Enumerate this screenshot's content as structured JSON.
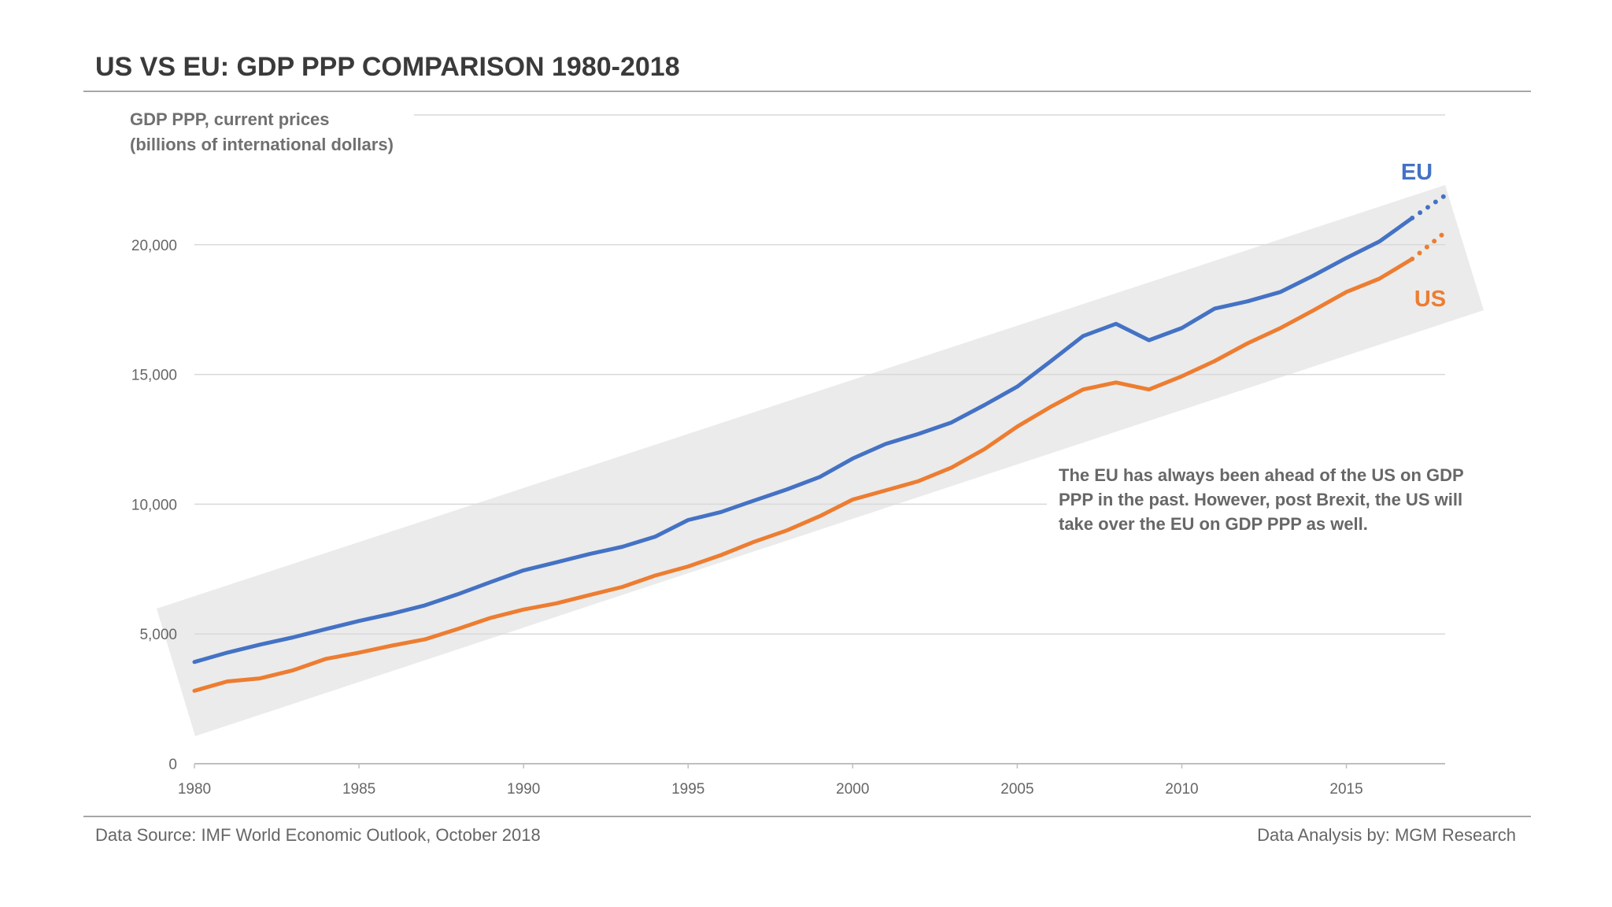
{
  "title": "US VS EU: GDP PPP COMPARISON 1980-2018",
  "footer": {
    "source": "Data Source: IMF World Economic Outlook, October 2018",
    "analysis": "Data Analysis by: MGM Research"
  },
  "chart_data": {
    "type": "line",
    "title": "US VS EU: GDP PPP COMPARISON 1980-2018",
    "ylabel_lines": [
      "GDP PPP, current prices",
      "(billions of international dollars)"
    ],
    "xlabel": "",
    "xlim": [
      1980,
      2018
    ],
    "ylim": [
      0,
      25000
    ],
    "x_ticks": [
      "1980",
      "1985",
      "1990",
      "1995",
      "2000",
      "2005",
      "2010",
      "2015"
    ],
    "y_ticks": [
      "0",
      "5,000",
      "10,000",
      "15,000",
      "20,000"
    ],
    "grid": true,
    "x": [
      1980,
      1981,
      1982,
      1983,
      1984,
      1985,
      1986,
      1987,
      1988,
      1989,
      1990,
      1991,
      1992,
      1993,
      1994,
      1995,
      1996,
      1997,
      1998,
      1999,
      2000,
      2001,
      2002,
      2003,
      2004,
      2005,
      2006,
      2007,
      2008,
      2009,
      2010,
      2011,
      2012,
      2013,
      2014,
      2015,
      2016,
      2017,
      2018
    ],
    "projected_from": 2017,
    "series": [
      {
        "name": "EU",
        "color": "#4472c4",
        "values": [
          3920,
          4280,
          4590,
          4870,
          5190,
          5500,
          5780,
          6100,
          6530,
          7000,
          7450,
          7760,
          8080,
          8360,
          8750,
          9390,
          9700,
          10140,
          10570,
          11050,
          11760,
          12320,
          12710,
          13150,
          13820,
          14530,
          15490,
          16480,
          16950,
          16320,
          16790,
          17540,
          17820,
          18180,
          18810,
          19490,
          20120,
          21030,
          21900
        ]
      },
      {
        "name": "US",
        "color": "#ed7d31",
        "values": [
          2810,
          3170,
          3290,
          3600,
          4040,
          4280,
          4550,
          4790,
          5190,
          5620,
          5940,
          6180,
          6500,
          6810,
          7250,
          7600,
          8040,
          8550,
          8990,
          9540,
          10180,
          10530,
          10890,
          11410,
          12120,
          12990,
          13740,
          14420,
          14690,
          14420,
          14930,
          15520,
          16200,
          16790,
          17470,
          18180,
          18690,
          19450,
          20480
        ]
      }
    ],
    "annotation": "The EU has always been ahead of the US on GDP PPP in the past. However, post Brexit, the US will take over the EU on GDP PPP as well.",
    "trend_band_color": "#e8e8e8"
  }
}
